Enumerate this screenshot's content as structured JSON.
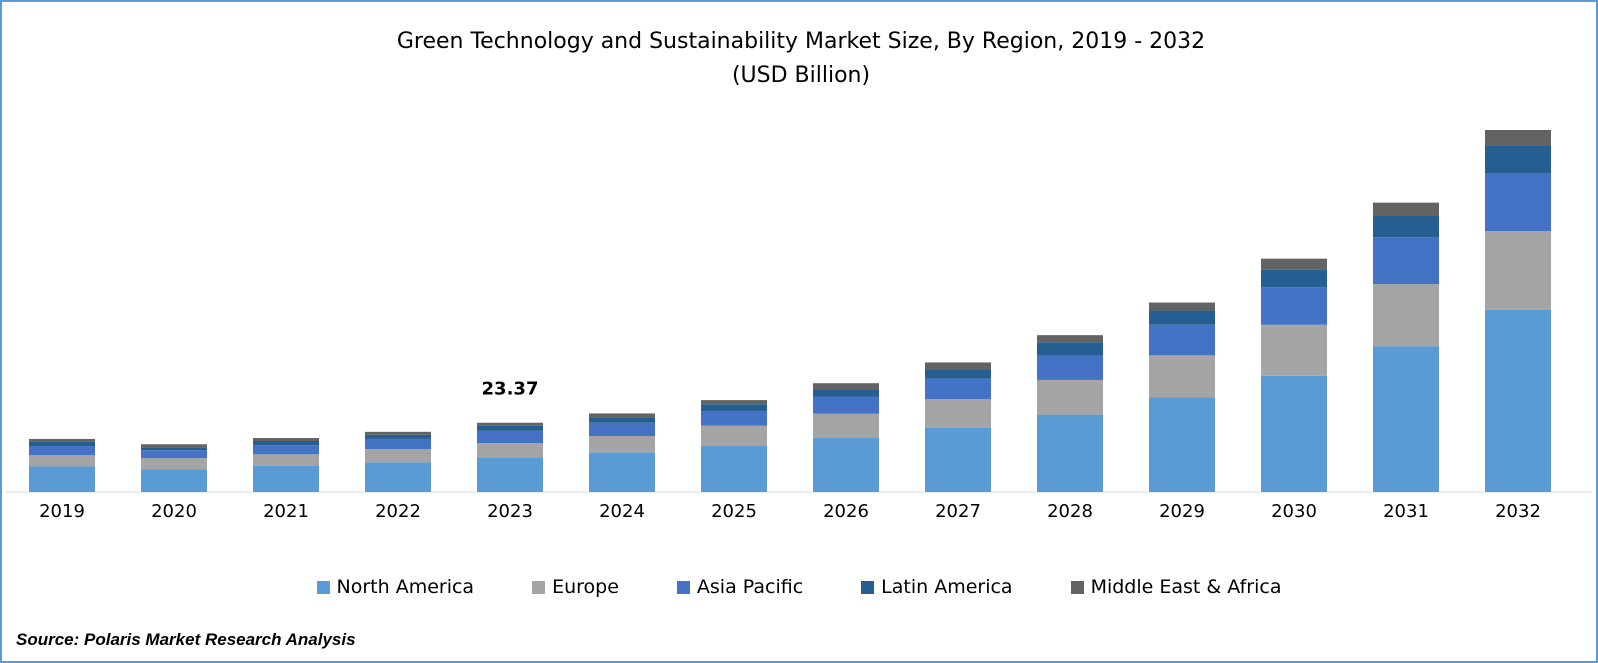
{
  "chart_data": {
    "type": "stacked-bar",
    "title": "Green Technology and Sustainability Market Size, By Region, 2019 - 2032",
    "subtitle": "(USD Billion)",
    "categories": [
      "2019",
      "2020",
      "2021",
      "2022",
      "2023",
      "2024",
      "2025",
      "2026",
      "2027",
      "2028",
      "2029",
      "2030",
      "2031",
      "2032"
    ],
    "series": [
      {
        "name": "North America",
        "color": "#5b9bd5",
        "values": [
          8.6,
          7.6,
          8.9,
          10.0,
          11.69,
          13.4,
          15.5,
          18.2,
          21.7,
          26.1,
          32.0,
          39.2,
          49.1,
          61.5
        ]
      },
      {
        "name": "Europe",
        "color": "#a5a5a5",
        "values": [
          3.8,
          3.8,
          3.8,
          4.5,
          4.81,
          5.5,
          6.9,
          8.2,
          9.6,
          11.7,
          14.1,
          17.2,
          21.0,
          26.5
        ]
      },
      {
        "name": "Asia Pacific",
        "color": "#4472c4",
        "values": [
          3.1,
          2.7,
          3.1,
          3.4,
          4.12,
          4.5,
          4.8,
          5.8,
          6.9,
          8.2,
          10.3,
          12.7,
          15.8,
          19.6
        ]
      },
      {
        "name": "Latin America",
        "color": "#255e91",
        "values": [
          1.4,
          1.0,
          1.4,
          1.4,
          1.72,
          1.7,
          2.4,
          2.4,
          3.1,
          4.5,
          4.8,
          5.8,
          7.2,
          9.3
        ]
      },
      {
        "name": "Middle East & Africa",
        "color": "#636363",
        "values": [
          1.0,
          1.0,
          1.0,
          1.0,
          1.03,
          1.4,
          1.4,
          2.1,
          2.4,
          2.4,
          2.7,
          3.8,
          4.5,
          5.2
        ]
      }
    ],
    "annotation": {
      "x": "2023",
      "value": 23.37
    },
    "legend": "bottom",
    "source": "Source: Polaris Market Research Analysis"
  }
}
